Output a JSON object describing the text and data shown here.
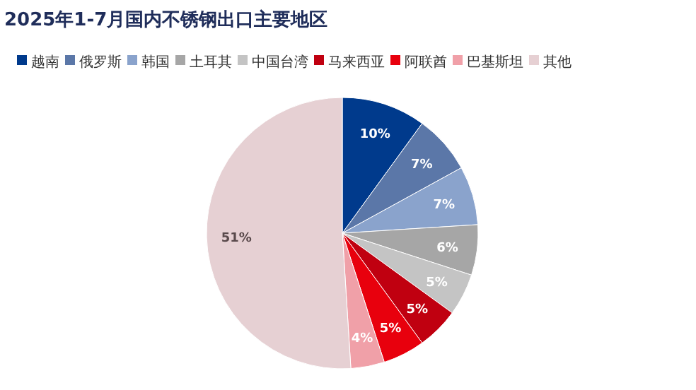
{
  "chart_data": {
    "type": "pie",
    "title": "2025年1-7月国内不锈钢出口主要地区",
    "categories": [
      "越南",
      "俄罗斯",
      "韩国",
      "土耳其",
      "中国台湾",
      "马来西亚",
      "阿联酋",
      "巴基斯坦",
      "其他"
    ],
    "values": [
      10,
      7,
      7,
      6,
      5,
      5,
      5,
      4,
      51
    ],
    "value_labels": [
      "10%",
      "7%",
      "7%",
      "6%",
      "5%",
      "5%",
      "5%",
      "4%",
      "51%"
    ],
    "colors": [
      "#003a8c",
      "#5b77a8",
      "#8aa3cc",
      "#a6a6a6",
      "#c4c4c4",
      "#c00010",
      "#e8000d",
      "#f0a0a8",
      "#e6d0d3"
    ],
    "legend": "top"
  }
}
